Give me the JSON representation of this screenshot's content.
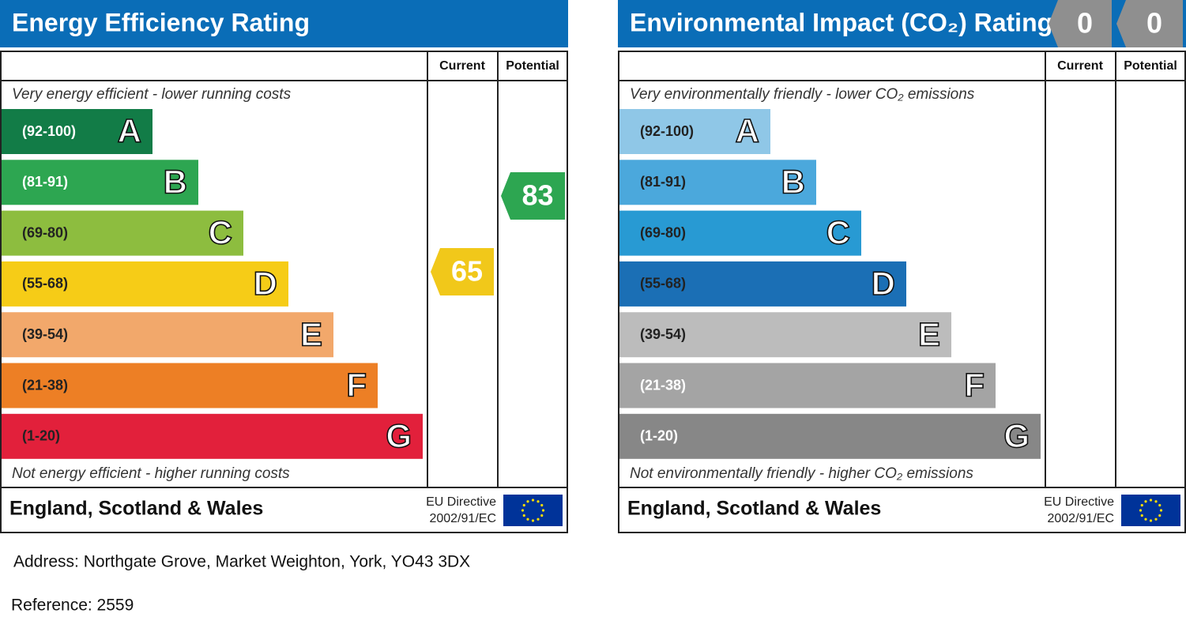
{
  "panels": [
    {
      "title": "Energy Efficiency Rating",
      "columns": [
        "Current",
        "Potential"
      ],
      "top_note": "Very energy efficient - lower running costs",
      "bottom_note": "Not energy efficient - higher running costs",
      "bands": [
        {
          "range": "(92-100)",
          "letter": "A",
          "color": "#127c47",
          "text_color": "#ffffff"
        },
        {
          "range": "(81-91)",
          "letter": "B",
          "color": "#2da651",
          "text_color": "#ffffff"
        },
        {
          "range": "(69-80)",
          "letter": "C",
          "color": "#8dbd3f",
          "text_color": "#222222"
        },
        {
          "range": "(55-68)",
          "letter": "D",
          "color": "#f6cc17",
          "text_color": "#222222"
        },
        {
          "range": "(39-54)",
          "letter": "E",
          "color": "#f2a86b",
          "text_color": "#222222"
        },
        {
          "range": "(21-38)",
          "letter": "F",
          "color": "#ed7f25",
          "text_color": "#222222"
        },
        {
          "range": "(1-20)",
          "letter": "G",
          "color": "#e2203b",
          "text_color": "#222222"
        }
      ],
      "current": {
        "value": 65,
        "color": "#f1c81a"
      },
      "potential": {
        "value": 83,
        "color": "#2da651"
      },
      "region": "England, Scotland & Wales",
      "directive": [
        "EU Directive",
        "2002/91/EC"
      ]
    },
    {
      "title": "Environmental Impact (CO₂) Rating",
      "columns": [
        "Current",
        "Potential"
      ],
      "top_note": "Very environmentally friendly - lower CO₂ emissions",
      "bottom_note": "Not environmentally friendly - higher CO₂ emissions",
      "bands": [
        {
          "range": "(92-100)",
          "letter": "A",
          "color": "#8fc7e7",
          "text_color": "#222222"
        },
        {
          "range": "(81-91)",
          "letter": "B",
          "color": "#4ba8dc",
          "text_color": "#222222"
        },
        {
          "range": "(69-80)",
          "letter": "C",
          "color": "#289ad3",
          "text_color": "#222222"
        },
        {
          "range": "(55-68)",
          "letter": "D",
          "color": "#1b6fb5",
          "text_color": "#222222"
        },
        {
          "range": "(39-54)",
          "letter": "E",
          "color": "#bcbcbc",
          "text_color": "#222222"
        },
        {
          "range": "(21-38)",
          "letter": "F",
          "color": "#a4a4a4",
          "text_color": "#ffffff"
        },
        {
          "range": "(1-20)",
          "letter": "G",
          "color": "#878787",
          "text_color": "#ffffff"
        }
      ],
      "current": {
        "value": 0,
        "color": "#8f8f8f"
      },
      "potential": {
        "value": 0,
        "color": "#8f8f8f"
      },
      "region": "England, Scotland & Wales",
      "directive": [
        "EU Directive",
        "2002/91/EC"
      ]
    }
  ],
  "address": "Address: Northgate Grove, Market Weighton, York, YO43 3DX",
  "reference": "Reference: 2559"
}
